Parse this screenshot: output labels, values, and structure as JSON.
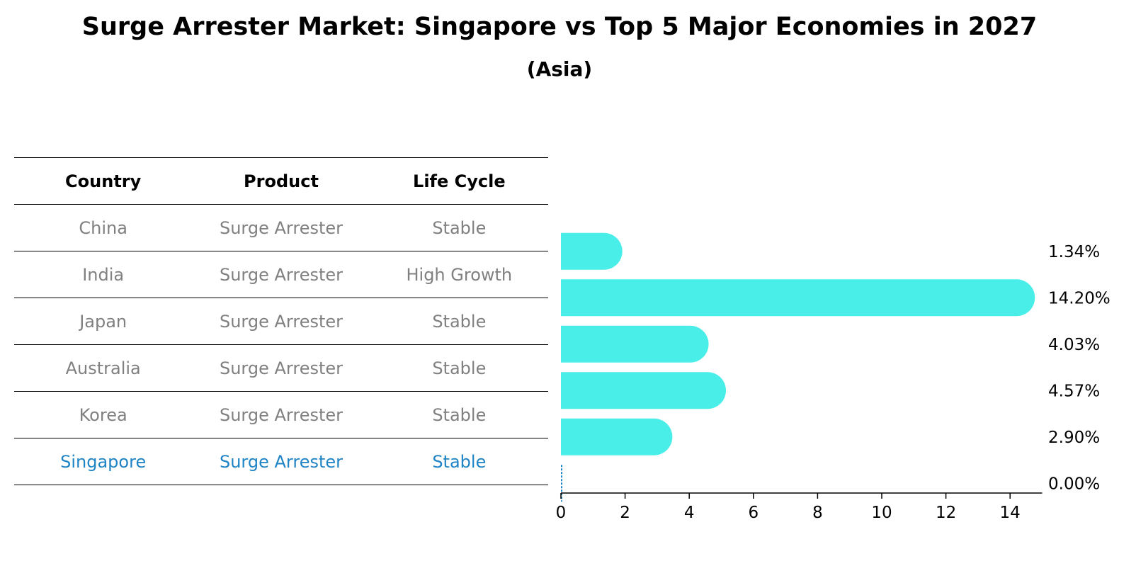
{
  "title": "Surge Arrester Market: Singapore vs Top 5 Major Economies in 2027",
  "subtitle": "(Asia)",
  "table": {
    "headers": [
      "Country",
      "Product",
      "Life Cycle"
    ],
    "rows": [
      {
        "country": "China",
        "product": "Surge Arrester",
        "life_cycle": "Stable"
      },
      {
        "country": "India",
        "product": "Surge Arrester",
        "life_cycle": "High Growth"
      },
      {
        "country": "Japan",
        "product": "Surge Arrester",
        "life_cycle": "Stable"
      },
      {
        "country": "Australia",
        "product": "Surge Arrester",
        "life_cycle": "Stable"
      },
      {
        "country": "Korea",
        "product": "Surge Arrester",
        "life_cycle": "Stable"
      },
      {
        "country": "Singapore",
        "product": "Surge Arrester",
        "life_cycle": "Stable"
      }
    ]
  },
  "colors": {
    "bar": "#4aeee9",
    "highlight": "#1f84c6",
    "muted_text": "#808080"
  },
  "chart_data": {
    "type": "bar",
    "orientation": "horizontal",
    "categories": [
      "China",
      "India",
      "Japan",
      "Australia",
      "Korea",
      "Singapore"
    ],
    "values": [
      1.34,
      14.2,
      4.03,
      4.57,
      2.9,
      0.0
    ],
    "value_labels": [
      "1.34%",
      "14.20%",
      "4.03%",
      "4.57%",
      "2.90%",
      "0.00%"
    ],
    "xlim": [
      0,
      15
    ],
    "xticks": [
      0,
      2,
      4,
      6,
      8,
      10,
      12,
      14
    ],
    "grid": false
  }
}
